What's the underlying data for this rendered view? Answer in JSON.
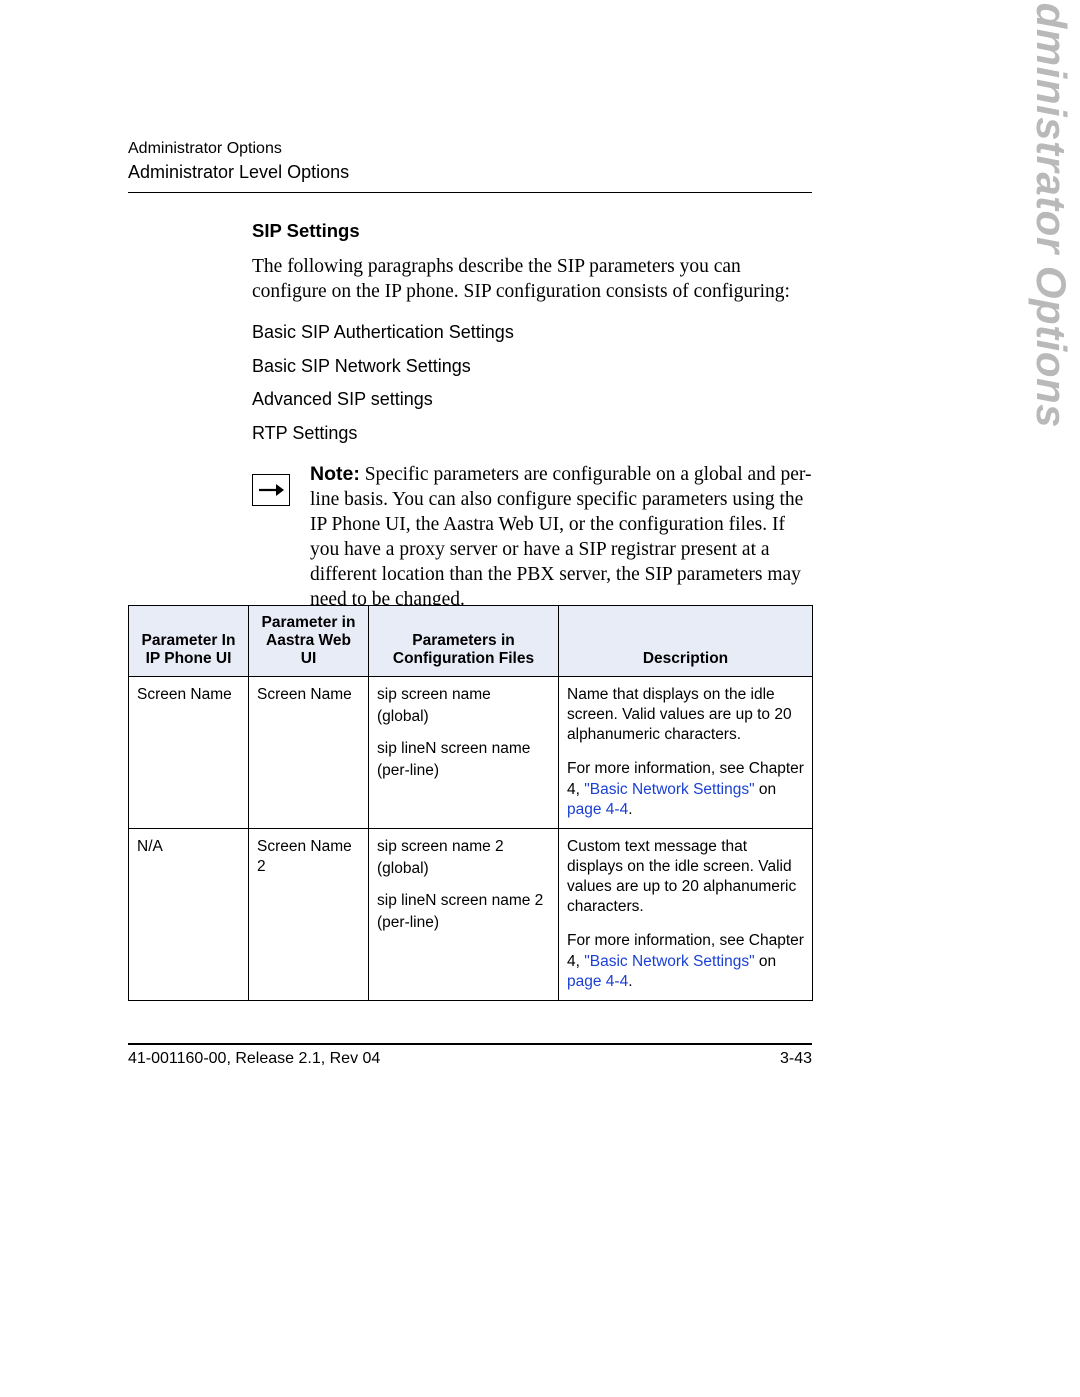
{
  "header": {
    "breadcrumb": "Administrator Options",
    "subtitle": "Administrator Level Options"
  },
  "side_label": "Administrator Options",
  "section": {
    "heading": "SIP Settings",
    "intro": "The following paragraphs describe the SIP parameters you can configure on the IP phone. SIP configuration consists of configuring:",
    "items": [
      "Basic SIP Authertication Settings",
      "Basic SIP Network Settings",
      "Advanced SIP settings",
      "RTP Settings"
    ],
    "note_label": "Note:",
    "note_text": " Specific parameters are configurable on a global and per-line basis. You can also configure specific parameters using the IP Phone UI, the Aastra Web UI, or the configuration files. If you have a proxy server or have a SIP registrar present at a different location than the PBX server, the SIP parameters may need to be changed.",
    "sub_heading": "Basic SIP Authentication Settings"
  },
  "table": {
    "headers": {
      "c1": "Parameter In\nIP Phone UI",
      "c2": "Parameter in\nAastra Web UI",
      "c3": "Parameters in\nConfiguration Files",
      "c4": "Description"
    },
    "col_widths": [
      "120px",
      "120px",
      "190px",
      "254px"
    ],
    "header_bg": "#e8ecf7",
    "border_color": "#000000",
    "link_color": "#1a3fd4",
    "rows": [
      {
        "c1": "Screen Name",
        "c2": "Screen Name",
        "cfg_global": "sip screen name",
        "cfg_global_scope": "(global)",
        "cfg_line": "sip lineN screen name",
        "cfg_line_scope": "(per-line)",
        "desc1": "Name that displays on the idle screen. Valid values are up to 20 alphanumeric characters.",
        "desc2_pre": "For more information, see Chapter 4, ",
        "desc2_link": "\"Basic Network Settings\"",
        "desc2_mid": " on ",
        "desc2_page": "page 4-4",
        "desc2_post": "."
      },
      {
        "c1": "N/A",
        "c2": "Screen Name 2",
        "cfg_global": "sip screen name 2",
        "cfg_global_scope": "(global)",
        "cfg_line": "sip lineN screen name 2",
        "cfg_line_scope": "(per-line)",
        "desc1": "Custom text message that displays on the idle screen. Valid values are up to 20 alphanumeric characters.",
        "desc2_pre": "For more information, see Chapter 4, ",
        "desc2_link": "\"Basic Network Settings\"",
        "desc2_mid": " on ",
        "desc2_page": "page 4-4",
        "desc2_post": "."
      }
    ]
  },
  "footer": {
    "left": "41-001160-00, Release 2.1, Rev 04",
    "right": "3-43"
  }
}
